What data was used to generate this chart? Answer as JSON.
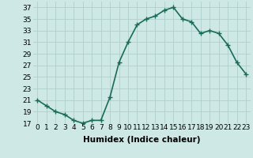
{
  "x": [
    0,
    1,
    2,
    3,
    4,
    5,
    6,
    7,
    8,
    9,
    10,
    11,
    12,
    13,
    14,
    15,
    16,
    17,
    18,
    19,
    20,
    21,
    22,
    23
  ],
  "y": [
    21,
    20,
    19,
    18.5,
    17.5,
    17,
    17.5,
    17.5,
    21.5,
    27.5,
    31,
    34,
    35,
    35.5,
    36.5,
    37,
    35,
    34.5,
    32.5,
    33,
    32.5,
    30.5,
    27.5,
    25.5
  ],
  "line_color": "#1a6b5a",
  "marker": "+",
  "marker_size": 4,
  "linewidth": 1.2,
  "xlabel": "Humidex (Indice chaleur)",
  "xlim": [
    -0.5,
    23.5
  ],
  "ylim": [
    17,
    38
  ],
  "yticks": [
    17,
    19,
    21,
    23,
    25,
    27,
    29,
    31,
    33,
    35,
    37
  ],
  "xticks": [
    0,
    1,
    2,
    3,
    4,
    5,
    6,
    7,
    8,
    9,
    10,
    11,
    12,
    13,
    14,
    15,
    16,
    17,
    18,
    19,
    20,
    21,
    22,
    23
  ],
  "background_color": "#cde8e5",
  "grid_color": "#b0d0cc",
  "tick_fontsize": 6.5,
  "xlabel_fontsize": 7.5
}
